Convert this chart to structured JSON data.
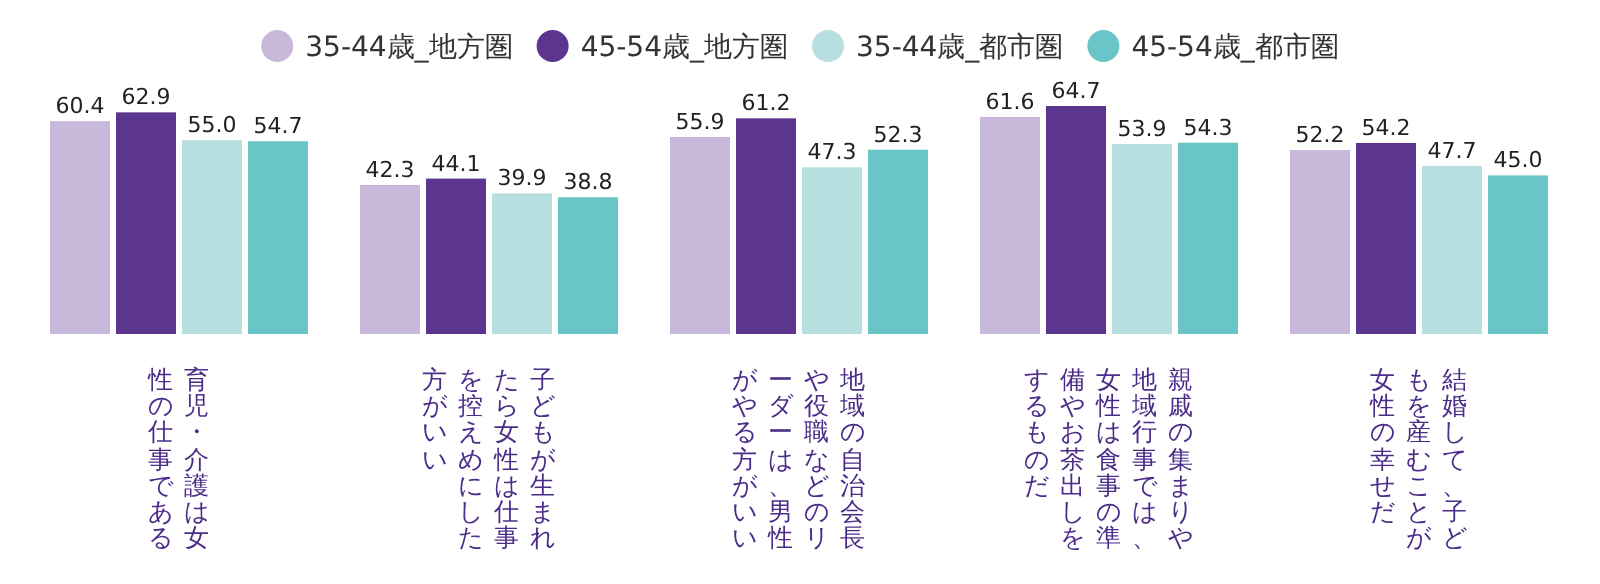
{
  "chart_data": {
    "type": "bar",
    "categories": [
      "育児・介護は女性の仕事である",
      "子どもが生まれたら女性は仕事を控えめにした方がいい",
      "地域の自治会長や役職などのリーダーは、男性がやる方がいい",
      "親戚の集まりや地域行事では、女性は食事の準備やお茶出しをするものだ",
      "結婚して、子どもを産むことが女性の幸せだ"
    ],
    "series": [
      {
        "name": "35-44歳_地方圏",
        "color": "#c8b9da",
        "values": [
          60.4,
          42.3,
          55.9,
          61.6,
          52.2
        ],
        "value_labels": [
          "60.4",
          "42.3",
          "55.9",
          "61.6",
          "52.2"
        ]
      },
      {
        "name": "45-54歳_地方圏",
        "color": "#5b358e",
        "values": [
          62.9,
          44.1,
          61.2,
          64.7,
          54.2
        ],
        "value_labels": [
          "62.9",
          "44.1",
          "61.2",
          "64.7",
          "54.2"
        ]
      },
      {
        "name": "35-44歳_都市圏",
        "color": "#b7dfe0",
        "values": [
          55.0,
          39.9,
          47.3,
          53.9,
          47.7
        ],
        "value_labels": [
          "55.0",
          "39.9",
          "47.3",
          "53.9",
          "47.7"
        ]
      },
      {
        "name": "45-54歳_都市圏",
        "color": "#6ac6c6",
        "values": [
          54.7,
          38.8,
          52.3,
          54.3,
          45.0
        ],
        "value_labels": [
          "54.7",
          "38.8",
          "52.3",
          "54.3",
          "45.0"
        ]
      }
    ],
    "legend": "top"
  }
}
